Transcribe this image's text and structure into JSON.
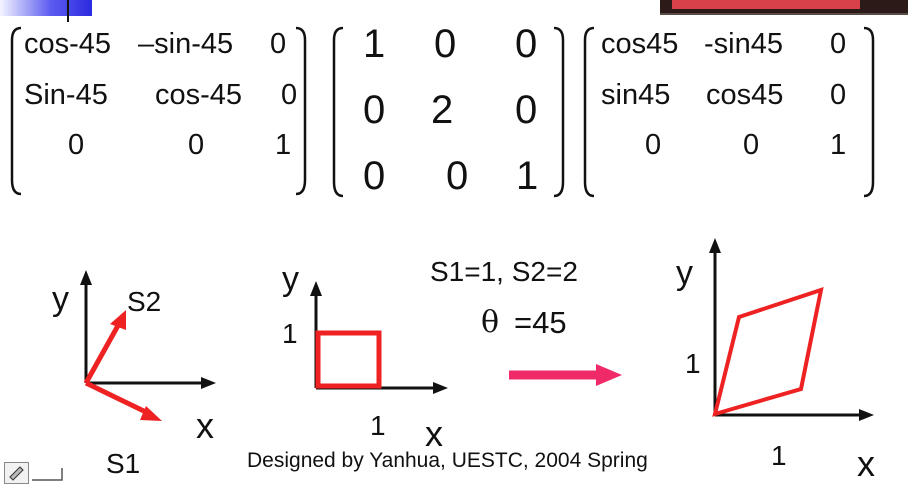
{
  "matrices": {
    "rotate_neg": {
      "rows": [
        [
          "cos-45",
          "–sin-45",
          "0"
        ],
        [
          "Sin-45",
          "cos-45",
          "0"
        ],
        [
          "0",
          "0",
          "1"
        ]
      ]
    },
    "scale": {
      "rows": [
        [
          "1",
          "0",
          "0"
        ],
        [
          "0",
          "2",
          "0"
        ],
        [
          "0",
          "0",
          "1"
        ]
      ]
    },
    "rotate_pos": {
      "rows": [
        [
          "cos45",
          "-sin45",
          "0"
        ],
        [
          "sin45",
          "cos45",
          "0"
        ],
        [
          "0",
          "0",
          "1"
        ]
      ]
    }
  },
  "diagram1": {
    "y_label": "y",
    "x_label": "x",
    "s2_label": "S2",
    "s1_label": "S1"
  },
  "diagram2": {
    "y_label": "y",
    "x_label": "x",
    "y_tick": "1",
    "x_tick": "1"
  },
  "params": {
    "line1": "S1=1, S2=2",
    "theta_symbol": "θ",
    "theta_value": "=45"
  },
  "diagram3": {
    "y_label": "y",
    "x_label": "x",
    "y_tick": "1",
    "x_tick": "1"
  },
  "footer": {
    "credit": "Designed by Yanhua, UESTC, 2004 Spring"
  },
  "colors": {
    "accent_red": "#ee2222",
    "arrow_pink": "#f02a68",
    "text": "#111111"
  }
}
